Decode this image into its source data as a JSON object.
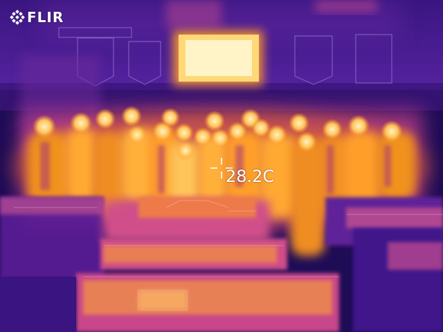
{
  "camera": {
    "brand": "FLIR",
    "logo_icon": "flir-snowflake-icon",
    "spot_temperature": "28.2C",
    "crosshair_icon": "spot-crosshair-icon"
  },
  "palette": {
    "cold": "#1e0c56",
    "cool": "#5b1fa0",
    "mid": "#b0348e",
    "warm": "#ec6a1e",
    "hot": "#ffb23a",
    "hottest": "#fff3c0"
  }
}
